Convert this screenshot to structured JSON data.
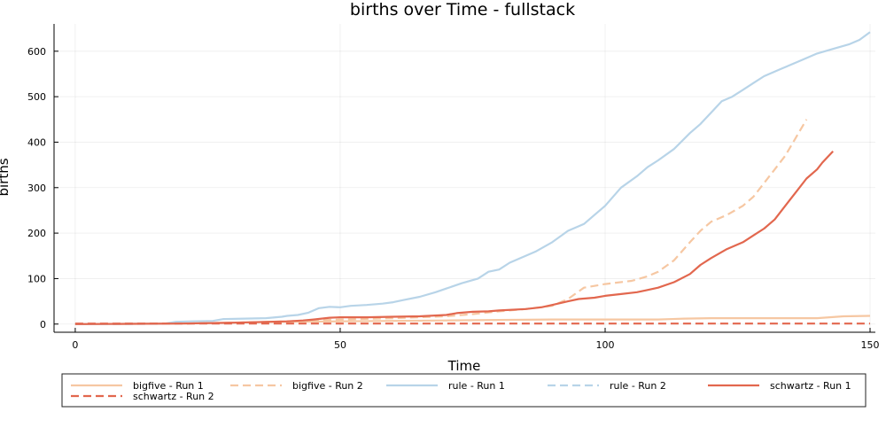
{
  "chart_data": {
    "type": "line",
    "title": "births over Time - fullstack",
    "xlabel": "Time",
    "ylabel": "births",
    "xlim": [
      -4,
      151
    ],
    "ylim": [
      -18,
      660
    ],
    "xticks": [
      0,
      50,
      100,
      150
    ],
    "yticks": [
      0,
      100,
      200,
      300,
      400,
      500,
      600
    ],
    "grid": true,
    "legend_position": "bottom",
    "series": [
      {
        "name": "bigfive - Run 1",
        "color": "#f6c7a2",
        "dash": "solid",
        "x": [
          0,
          20,
          30,
          40,
          50,
          60,
          70,
          80,
          90,
          100,
          110,
          115,
          120,
          130,
          140,
          145,
          150
        ],
        "y": [
          0,
          1,
          3,
          5,
          6,
          7,
          8,
          9,
          10,
          10,
          10,
          12,
          13,
          13,
          13,
          17,
          18
        ]
      },
      {
        "name": "bigfive - Run 2",
        "color": "#f6c7a2",
        "dash": "dashed",
        "x": [
          0,
          20,
          30,
          40,
          50,
          60,
          70,
          75,
          80,
          85,
          90,
          93,
          96,
          100,
          105,
          108,
          110,
          113,
          116,
          118,
          120,
          123,
          126,
          128,
          130,
          132,
          134,
          136,
          138
        ],
        "y": [
          0,
          1,
          3,
          6,
          10,
          13,
          17,
          22,
          28,
          33,
          40,
          55,
          80,
          88,
          95,
          105,
          115,
          140,
          180,
          205,
          225,
          240,
          260,
          280,
          310,
          340,
          370,
          410,
          450
        ]
      },
      {
        "name": "rule - Run 1",
        "color": "#b8d4e8",
        "dash": "solid",
        "x": [
          0,
          17,
          19,
          22,
          26,
          28,
          32,
          36,
          39,
          40,
          42,
          44,
          46,
          48,
          50,
          52,
          55,
          58,
          60,
          62,
          65,
          68,
          70,
          73,
          76,
          78,
          80,
          82,
          85,
          87,
          90,
          93,
          96,
          98,
          100,
          103,
          106,
          108,
          110,
          113,
          116,
          118,
          120,
          122,
          124,
          126,
          128,
          130,
          133,
          136,
          138,
          140,
          143,
          146,
          148,
          150
        ],
        "y": [
          0,
          1,
          5,
          6,
          7,
          11,
          12,
          13,
          16,
          18,
          20,
          25,
          35,
          38,
          37,
          40,
          42,
          45,
          48,
          53,
          60,
          70,
          78,
          90,
          100,
          115,
          120,
          135,
          150,
          160,
          180,
          205,
          220,
          240,
          260,
          300,
          325,
          345,
          360,
          385,
          420,
          440,
          465,
          490,
          500,
          515,
          530,
          545,
          560,
          575,
          585,
          595,
          605,
          615,
          625,
          642
        ]
      },
      {
        "name": "rule - Run 2",
        "color": "#b8d4e8",
        "dash": "dashed",
        "x": [
          0,
          10,
          20
        ],
        "y": [
          0,
          0,
          1
        ]
      },
      {
        "name": "schwartz - Run 1",
        "color": "#e2674e",
        "dash": "solid",
        "x": [
          0,
          20,
          30,
          40,
          43,
          45,
          48,
          50,
          55,
          60,
          65,
          70,
          72,
          75,
          78,
          80,
          85,
          88,
          90,
          93,
          95,
          98,
          100,
          103,
          106,
          108,
          110,
          113,
          116,
          118,
          120,
          123,
          126,
          128,
          130,
          132,
          134,
          136,
          138,
          140,
          141,
          143
        ],
        "y": [
          0,
          1,
          3,
          6,
          8,
          10,
          14,
          15,
          15,
          16,
          17,
          20,
          24,
          27,
          28,
          30,
          33,
          37,
          42,
          50,
          55,
          58,
          62,
          66,
          70,
          75,
          80,
          92,
          110,
          130,
          145,
          165,
          180,
          195,
          210,
          230,
          260,
          290,
          320,
          340,
          355,
          380
        ]
      },
      {
        "name": "schwartz - Run 2",
        "color": "#e2674e",
        "dash": "dashed",
        "x": [
          0,
          50,
          100,
          150
        ],
        "y": [
          1,
          1,
          1,
          1
        ]
      }
    ]
  }
}
